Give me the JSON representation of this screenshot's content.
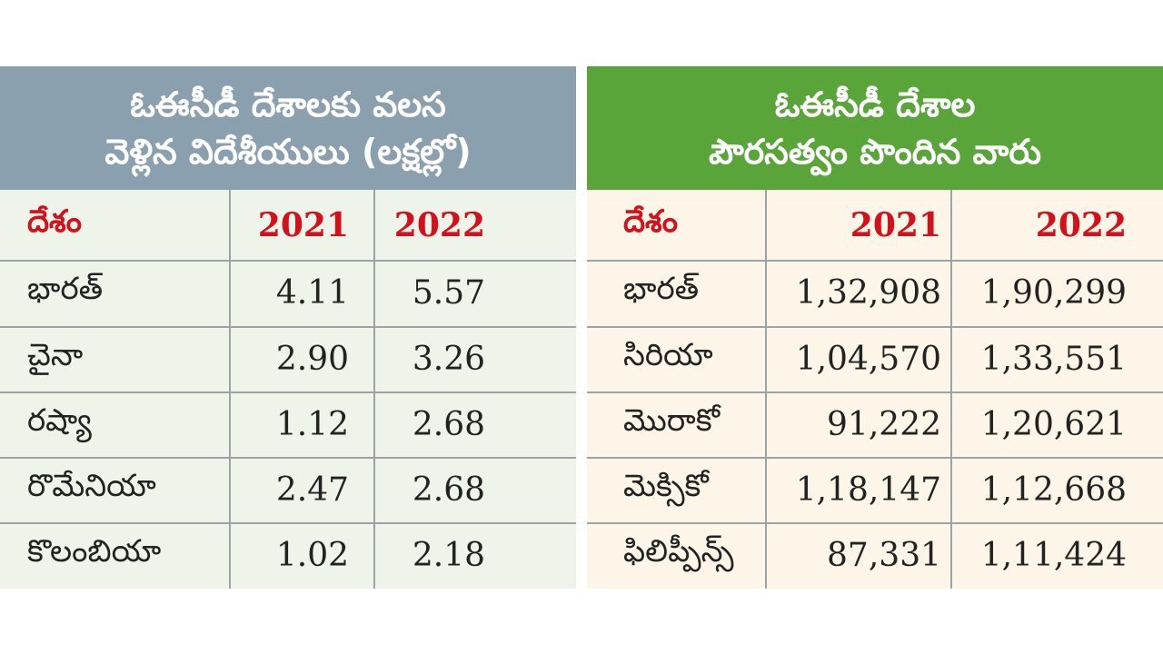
{
  "left_table": {
    "title_line1": "ఓఈసీడీ దేశాలకు వలస",
    "title_line2": "వెళ్లిన విదేశీయులు (లక్షల్లో)",
    "columns": [
      "దేశం",
      "2021",
      "2022"
    ],
    "rows": [
      {
        "country": "భారత్",
        "y2021": "4.11",
        "y2022": "5.57"
      },
      {
        "country": "చైనా",
        "y2021": "2.90",
        "y2022": "3.26"
      },
      {
        "country": "రష్యా",
        "y2021": "1.12",
        "y2022": "2.68"
      },
      {
        "country": "రొమేనియా",
        "y2021": "2.47",
        "y2022": "2.68"
      },
      {
        "country": "కొలంబియా",
        "y2021": "1.02",
        "y2022": "2.18"
      }
    ]
  },
  "right_table": {
    "title_line1": "ఓఈసీడీ దేశాల",
    "title_line2": "పౌరసత్వం పొందిన వారు",
    "columns": [
      "దేశం",
      "2021",
      "2022"
    ],
    "rows": [
      {
        "country": "భారత్",
        "y2021": "1,32,908",
        "y2022": "1,90,299"
      },
      {
        "country": "సిరియా",
        "y2021": "1,04,570",
        "y2022": "1,33,551"
      },
      {
        "country": "మొరాకో",
        "y2021": "91,222",
        "y2022": "1,20,621"
      },
      {
        "country": "మెక్సికో",
        "y2021": "1,18,147",
        "y2022": "1,12,668"
      },
      {
        "country": "ఫిలిప్పీన్స్",
        "y2021": "87,331",
        "y2022": "1,11,424"
      }
    ]
  },
  "colors": {
    "left_header_bg": "#8aa0ae",
    "right_header_bg": "#5aa53a",
    "header_text": "#ffffff",
    "column_header_text": "#d4101a",
    "left_body_bg": "#eef4ea",
    "right_body_bg": "#fdf6e8"
  }
}
